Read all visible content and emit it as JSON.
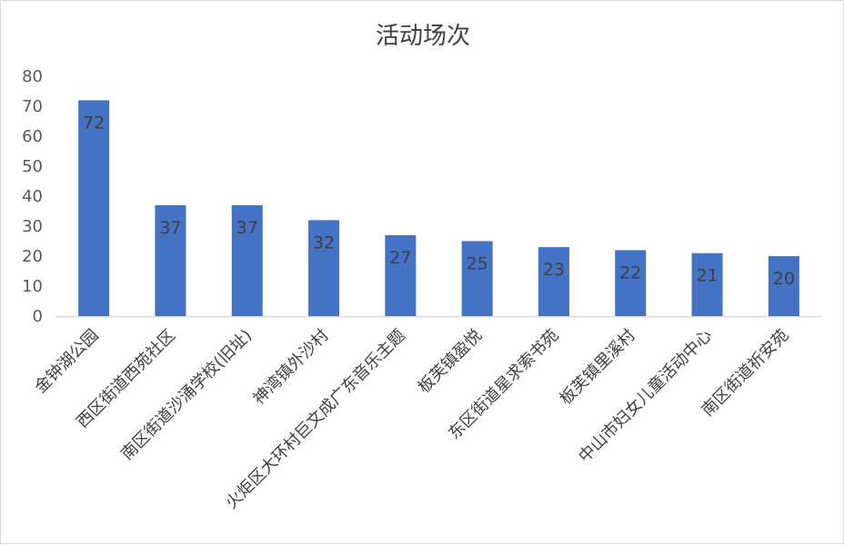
{
  "chart_data": {
    "type": "bar",
    "title": "活动场次",
    "xlabel": "",
    "ylabel": "",
    "categories": [
      "金钟湖公园",
      "西区街道西苑社区",
      "南区街道沙涌学校(旧址)",
      "神湾镇外沙村",
      "火炬区大环村巨文成广东音乐主题",
      "板芙镇盈悦",
      "东区街道星求索书苑",
      "板芙镇里溪村",
      "中山市妇女儿童活动中心",
      "南区街道祈安苑"
    ],
    "values": [
      72,
      37,
      37,
      32,
      27,
      25,
      23,
      22,
      21,
      20
    ],
    "ylim": [
      0,
      80
    ],
    "yticks": [
      "0",
      "10",
      "20",
      "30",
      "40",
      "50",
      "60",
      "70",
      "80"
    ],
    "bar_color": "#4472c4",
    "grid": false,
    "legend": "none",
    "data_labels": [
      "72",
      "37",
      "37",
      "32",
      "27",
      "25",
      "23",
      "22",
      "21",
      "20"
    ]
  }
}
